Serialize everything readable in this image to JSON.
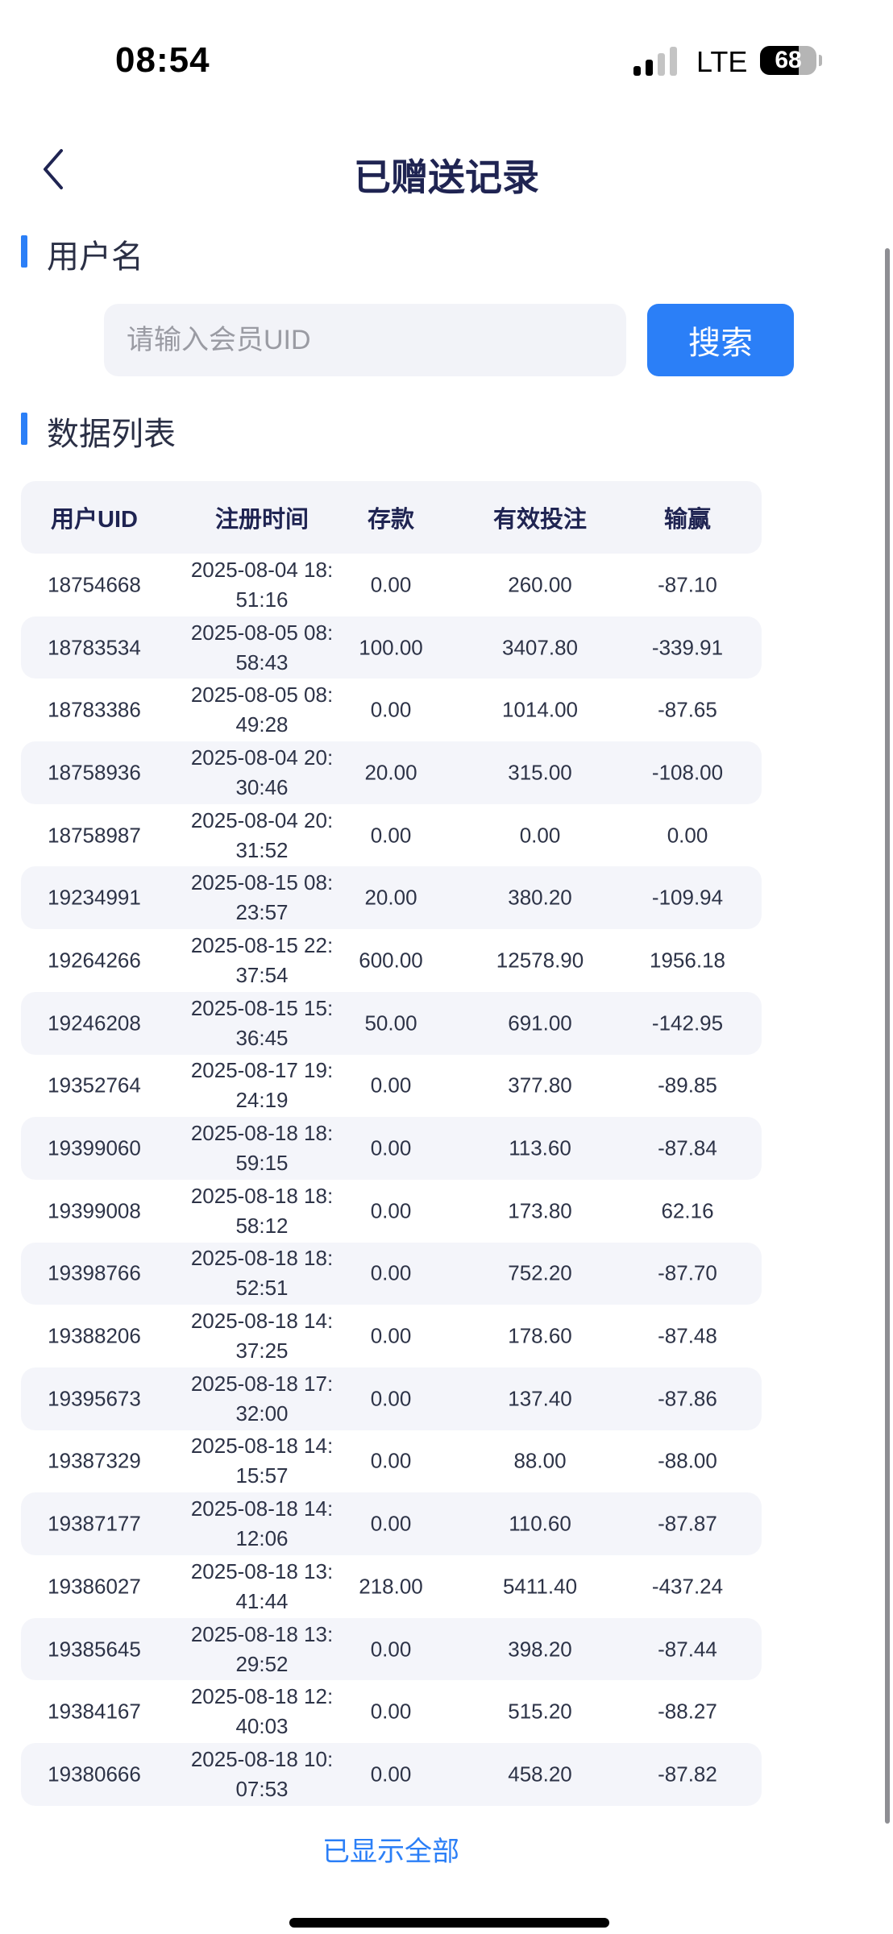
{
  "status_bar": {
    "time": "08:54",
    "network": "LTE",
    "battery": "68",
    "battery_level": 0.68,
    "signal_bars": 2
  },
  "header": {
    "title": "已赠送记录",
    "back_icon": "chevron-left-icon"
  },
  "search_section": {
    "title": "用户名",
    "placeholder": "请输入会员UID",
    "value": "",
    "button_label": "搜索"
  },
  "list_section": {
    "title": "数据列表"
  },
  "colors": {
    "accent": "#2b7ff7",
    "title": "#1f2452",
    "row_alt": "#f4f5fa"
  },
  "table": {
    "columns": [
      "用户UID",
      "注册时间",
      "存款",
      "有效投注",
      "输赢"
    ],
    "rows": [
      [
        "18754668",
        "2025-08-04 18:51:16",
        "0.00",
        "260.00",
        "-87.10"
      ],
      [
        "18783534",
        "2025-08-05 08:58:43",
        "100.00",
        "3407.80",
        "-339.91"
      ],
      [
        "18783386",
        "2025-08-05 08:49:28",
        "0.00",
        "1014.00",
        "-87.65"
      ],
      [
        "18758936",
        "2025-08-04 20:30:46",
        "20.00",
        "315.00",
        "-108.00"
      ],
      [
        "18758987",
        "2025-08-04 20:31:52",
        "0.00",
        "0.00",
        "0.00"
      ],
      [
        "19234991",
        "2025-08-15 08:23:57",
        "20.00",
        "380.20",
        "-109.94"
      ],
      [
        "19264266",
        "2025-08-15 22:37:54",
        "600.00",
        "12578.90",
        "1956.18"
      ],
      [
        "19246208",
        "2025-08-15 15:36:45",
        "50.00",
        "691.00",
        "-142.95"
      ],
      [
        "19352764",
        "2025-08-17 19:24:19",
        "0.00",
        "377.80",
        "-89.85"
      ],
      [
        "19399060",
        "2025-08-18 18:59:15",
        "0.00",
        "113.60",
        "-87.84"
      ],
      [
        "19399008",
        "2025-08-18 18:58:12",
        "0.00",
        "173.80",
        "62.16"
      ],
      [
        "19398766",
        "2025-08-18 18:52:51",
        "0.00",
        "752.20",
        "-87.70"
      ],
      [
        "19388206",
        "2025-08-18 14:37:25",
        "0.00",
        "178.60",
        "-87.48"
      ],
      [
        "19395673",
        "2025-08-18 17:32:00",
        "0.00",
        "137.40",
        "-87.86"
      ],
      [
        "19387329",
        "2025-08-18 14:15:57",
        "0.00",
        "88.00",
        "-88.00"
      ],
      [
        "19387177",
        "2025-08-18 14:12:06",
        "0.00",
        "110.60",
        "-87.87"
      ],
      [
        "19386027",
        "2025-08-18 13:41:44",
        "218.00",
        "5411.40",
        "-437.24"
      ],
      [
        "19385645",
        "2025-08-18 13:29:52",
        "0.00",
        "398.20",
        "-87.44"
      ],
      [
        "19384167",
        "2025-08-18 12:40:03",
        "0.00",
        "515.20",
        "-88.27"
      ],
      [
        "19380666",
        "2025-08-18 10:07:53",
        "0.00",
        "458.20",
        "-87.82"
      ]
    ]
  },
  "footer": {
    "text": "已显示全部"
  }
}
